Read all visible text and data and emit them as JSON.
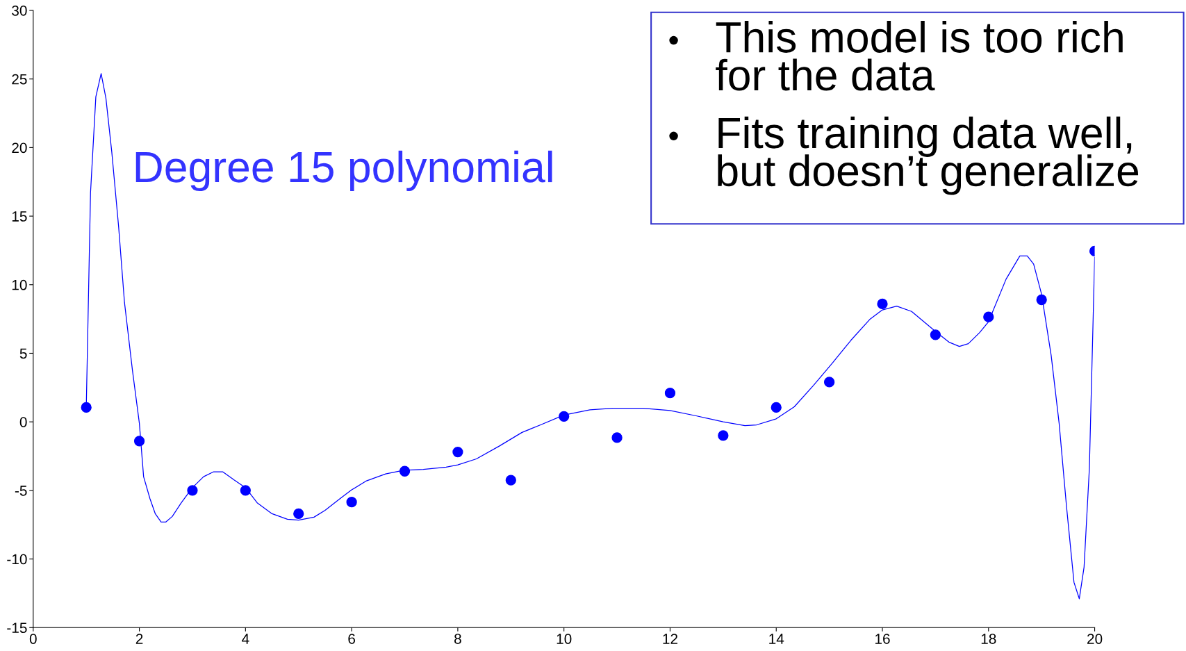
{
  "chart_data": {
    "type": "scatter",
    "xlim": [
      0,
      20
    ],
    "ylim": [
      -15,
      30
    ],
    "xticks": [
      0,
      2,
      4,
      6,
      8,
      10,
      12,
      14,
      16,
      18,
      20
    ],
    "yticks": [
      -15,
      -10,
      -5,
      0,
      5,
      10,
      15,
      20,
      25,
      30
    ],
    "grid": false,
    "legend": false,
    "annotations": [
      "Degree 15 polynomial",
      "This model is too rich\nfor the data",
      "Fits training data well,\nbut doesn’t generalize"
    ],
    "series": [
      {
        "color": "#0000ff",
        "marker": "circle",
        "x": [
          1,
          2,
          3,
          4,
          5,
          6,
          7,
          8,
          9,
          10,
          11,
          12,
          13,
          14,
          15,
          16,
          17,
          18,
          19,
          20
        ],
        "values": [
          1.05,
          -1.4,
          -5.0,
          -5.0,
          -6.7,
          -5.85,
          -3.6,
          -2.2,
          -4.25,
          0.4,
          -1.15,
          2.1,
          -1.0,
          1.05,
          2.9,
          8.6,
          6.35,
          7.65,
          8.9,
          12.45
        ]
      },
      {
        "type": "line",
        "color": "#0000ff",
        "marker": "none",
        "line_style": "solid",
        "x": [
          1.0,
          1.08,
          1.18,
          1.28,
          1.37,
          1.48,
          1.61,
          1.72,
          1.87,
          2.0,
          2.08,
          2.2,
          2.3,
          2.41,
          2.5,
          2.62,
          2.79,
          3.0,
          3.21,
          3.4,
          3.57,
          3.79,
          4.0,
          4.22,
          4.5,
          4.79,
          5.0,
          5.29,
          5.5,
          5.78,
          6.0,
          6.28,
          6.64,
          6.98,
          7.35,
          7.78,
          8.0,
          8.35,
          8.78,
          9.21,
          9.56,
          10.0,
          10.49,
          10.92,
          11.49,
          12.0,
          12.49,
          13.0,
          13.41,
          13.63,
          14.0,
          14.34,
          14.7,
          15.06,
          15.41,
          15.77,
          16.0,
          16.27,
          16.55,
          17.0,
          17.26,
          17.45,
          17.62,
          17.83,
          18.0,
          18.33,
          18.59,
          18.73,
          18.85,
          19.0,
          19.18,
          19.33,
          19.47,
          19.61,
          19.71,
          19.8,
          19.9,
          20.0
        ],
        "values": [
          1.05,
          16.7,
          23.7,
          25.4,
          23.6,
          19.7,
          14.2,
          8.7,
          3.75,
          -0.1,
          -4.0,
          -5.6,
          -6.7,
          -7.3,
          -7.3,
          -6.9,
          -5.9,
          -4.8,
          -4.0,
          -3.64,
          -3.64,
          -4.25,
          -4.8,
          -5.9,
          -6.7,
          -7.1,
          -7.17,
          -6.95,
          -6.45,
          -5.6,
          -4.96,
          -4.3,
          -3.8,
          -3.53,
          -3.47,
          -3.3,
          -3.14,
          -2.7,
          -1.77,
          -0.77,
          -0.22,
          0.5,
          0.88,
          0.99,
          0.99,
          0.83,
          0.44,
          0.0,
          -0.28,
          -0.22,
          0.22,
          1.1,
          2.65,
          4.3,
          5.96,
          7.5,
          8.16,
          8.44,
          8.05,
          6.6,
          5.8,
          5.5,
          5.7,
          6.5,
          7.3,
          10.4,
          12.1,
          12.1,
          11.5,
          9.3,
          4.85,
          -0.1,
          -6.2,
          -11.7,
          -12.9,
          -10.6,
          -3.4,
          12.0
        ]
      }
    ]
  }
}
